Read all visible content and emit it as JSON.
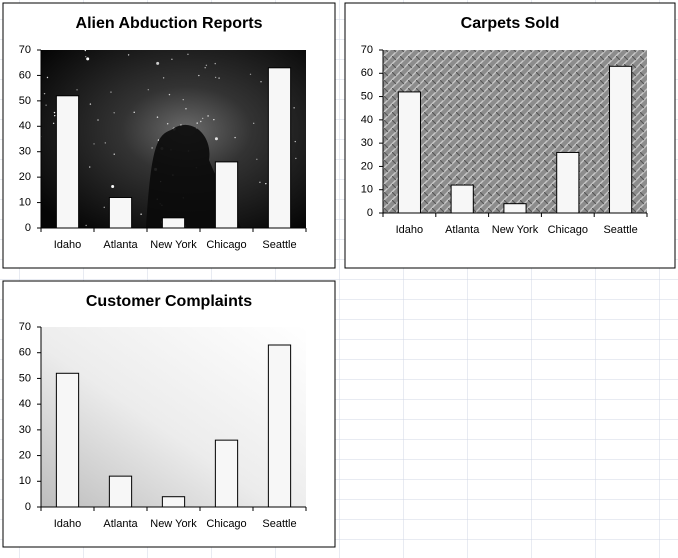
{
  "chart_data": [
    {
      "type": "bar",
      "title": "Alien Abduction Reports",
      "categories": [
        "Idaho",
        "Atlanta",
        "New York",
        "Chicago",
        "Seattle"
      ],
      "values": [
        52,
        12,
        4,
        26,
        63
      ],
      "color": "#f7f7f7",
      "ylim": [
        0,
        70
      ],
      "yticks": [
        0,
        10,
        20,
        30,
        40,
        50,
        60,
        70
      ]
    },
    {
      "type": "bar",
      "title": "Carpets Sold",
      "categories": [
        "Idaho",
        "Atlanta",
        "New York",
        "Chicago",
        "Seattle"
      ],
      "values": [
        52,
        12,
        4,
        26,
        63
      ],
      "color": "#f7f7f7",
      "ylim": [
        0,
        70
      ],
      "yticks": [
        0,
        10,
        20,
        30,
        40,
        50,
        60,
        70
      ]
    },
    {
      "type": "bar",
      "title": "Customer Complaints",
      "categories": [
        "Idaho",
        "Atlanta",
        "New York",
        "Chicago",
        "Seattle"
      ],
      "values": [
        52,
        12,
        4,
        26,
        63
      ],
      "color": "#f7f7f7",
      "ylim": [
        0,
        70
      ],
      "yticks": [
        0,
        10,
        20,
        30,
        40,
        50,
        60,
        70
      ]
    }
  ]
}
